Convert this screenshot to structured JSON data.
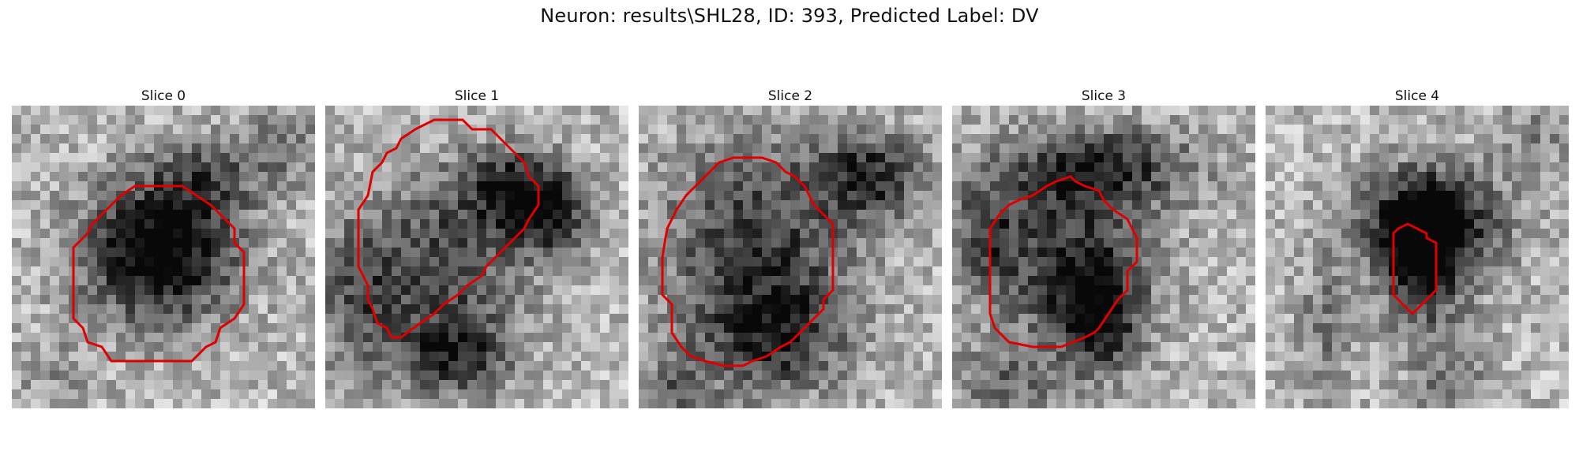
{
  "figure": {
    "title": "Neuron: results\\SHL28, ID: 393, Predicted Label: DV"
  },
  "panels": [
    {
      "title": "Slice 0"
    },
    {
      "title": "Slice 1"
    },
    {
      "title": "Slice 2"
    },
    {
      "title": "Slice 3"
    },
    {
      "title": "Slice 4"
    }
  ],
  "colors": {
    "contour": "#e00000",
    "background": "#ffffff"
  }
}
